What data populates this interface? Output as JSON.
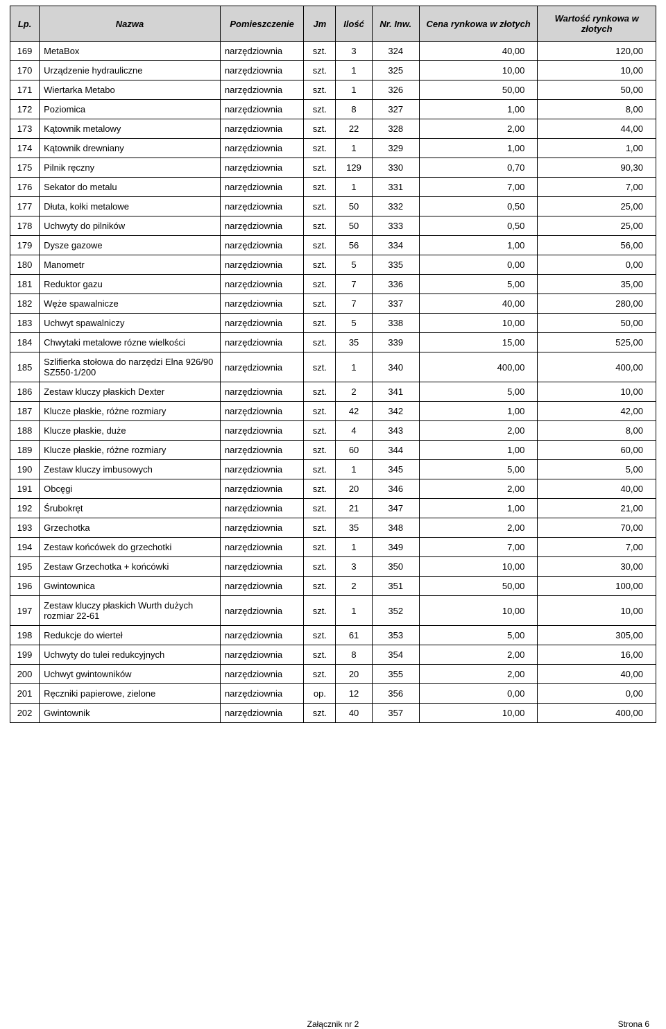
{
  "table": {
    "headers": {
      "lp": "Lp.",
      "name": "Nazwa",
      "room": "Pomieszczenie",
      "jm": "Jm",
      "qty": "Ilość",
      "inv": "Nr. Inw.",
      "price": "Cena rynkowa  w złotych",
      "value": "Wartość rynkowa w złotych"
    },
    "rows": [
      {
        "lp": "169",
        "name": "MetaBox",
        "room": "narzędziownia",
        "jm": "szt.",
        "qty": "3",
        "inv": "324",
        "price": "40,00",
        "value": "120,00"
      },
      {
        "lp": "170",
        "name": "Urządzenie hydrauliczne",
        "room": "narzędziownia",
        "jm": "szt.",
        "qty": "1",
        "inv": "325",
        "price": "10,00",
        "value": "10,00"
      },
      {
        "lp": "171",
        "name": "Wiertarka Metabo",
        "room": "narzędziownia",
        "jm": "szt.",
        "qty": "1",
        "inv": "326",
        "price": "50,00",
        "value": "50,00"
      },
      {
        "lp": "172",
        "name": "Poziomica",
        "room": "narzędziownia",
        "jm": "szt.",
        "qty": "8",
        "inv": "327",
        "price": "1,00",
        "value": "8,00"
      },
      {
        "lp": "173",
        "name": "Kątownik metalowy",
        "room": "narzędziownia",
        "jm": "szt.",
        "qty": "22",
        "inv": "328",
        "price": "2,00",
        "value": "44,00"
      },
      {
        "lp": "174",
        "name": "Kątownik drewniany",
        "room": "narzędziownia",
        "jm": "szt.",
        "qty": "1",
        "inv": "329",
        "price": "1,00",
        "value": "1,00"
      },
      {
        "lp": "175",
        "name": "Pilnik ręczny",
        "room": "narzędziownia",
        "jm": "szt.",
        "qty": "129",
        "inv": "330",
        "price": "0,70",
        "value": "90,30"
      },
      {
        "lp": "176",
        "name": "Sekator do metalu",
        "room": "narzędziownia",
        "jm": "szt.",
        "qty": "1",
        "inv": "331",
        "price": "7,00",
        "value": "7,00"
      },
      {
        "lp": "177",
        "name": "Dłuta, kołki metalowe",
        "room": "narzędziownia",
        "jm": "szt.",
        "qty": "50",
        "inv": "332",
        "price": "0,50",
        "value": "25,00"
      },
      {
        "lp": "178",
        "name": "Uchwyty do pilników",
        "room": "narzędziownia",
        "jm": "szt.",
        "qty": "50",
        "inv": "333",
        "price": "0,50",
        "value": "25,00"
      },
      {
        "lp": "179",
        "name": "Dysze gazowe",
        "room": "narzędziownia",
        "jm": "szt.",
        "qty": "56",
        "inv": "334",
        "price": "1,00",
        "value": "56,00"
      },
      {
        "lp": "180",
        "name": "Manometr",
        "room": "narzędziownia",
        "jm": "szt.",
        "qty": "5",
        "inv": "335",
        "price": "0,00",
        "value": "0,00"
      },
      {
        "lp": "181",
        "name": "Reduktor gazu",
        "room": "narzędziownia",
        "jm": "szt.",
        "qty": "7",
        "inv": "336",
        "price": "5,00",
        "value": "35,00"
      },
      {
        "lp": "182",
        "name": "Węże spawalnicze",
        "room": "narzędziownia",
        "jm": "szt.",
        "qty": "7",
        "inv": "337",
        "price": "40,00",
        "value": "280,00"
      },
      {
        "lp": "183",
        "name": "Uchwyt spawalniczy",
        "room": "narzędziownia",
        "jm": "szt.",
        "qty": "5",
        "inv": "338",
        "price": "10,00",
        "value": "50,00"
      },
      {
        "lp": "184",
        "name": "Chwytaki metalowe rózne wielkości",
        "room": "narzędziownia",
        "jm": "szt.",
        "qty": "35",
        "inv": "339",
        "price": "15,00",
        "value": "525,00"
      },
      {
        "lp": "185",
        "name": "Szlifierka stołowa do narzędzi Elna 926/90 SZ550-1/200",
        "room": "narzędziownia",
        "jm": "szt.",
        "qty": "1",
        "inv": "340",
        "price": "400,00",
        "value": "400,00"
      },
      {
        "lp": "186",
        "name": "Zestaw kluczy płaskich Dexter",
        "room": "narzędziownia",
        "jm": "szt.",
        "qty": "2",
        "inv": "341",
        "price": "5,00",
        "value": "10,00"
      },
      {
        "lp": "187",
        "name": "Klucze płaskie, różne rozmiary",
        "room": "narzędziownia",
        "jm": "szt.",
        "qty": "42",
        "inv": "342",
        "price": "1,00",
        "value": "42,00"
      },
      {
        "lp": "188",
        "name": "Klucze płaskie, duże",
        "room": "narzędziownia",
        "jm": "szt.",
        "qty": "4",
        "inv": "343",
        "price": "2,00",
        "value": "8,00"
      },
      {
        "lp": "189",
        "name": "Klucze płaskie, różne rozmiary",
        "room": "narzędziownia",
        "jm": "szt.",
        "qty": "60",
        "inv": "344",
        "price": "1,00",
        "value": "60,00"
      },
      {
        "lp": "190",
        "name": "Zestaw kluczy imbusowych",
        "room": "narzędziownia",
        "jm": "szt.",
        "qty": "1",
        "inv": "345",
        "price": "5,00",
        "value": "5,00"
      },
      {
        "lp": "191",
        "name": "Obcęgi",
        "room": "narzędziownia",
        "jm": "szt.",
        "qty": "20",
        "inv": "346",
        "price": "2,00",
        "value": "40,00"
      },
      {
        "lp": "192",
        "name": "Śrubokręt",
        "room": "narzędziownia",
        "jm": "szt.",
        "qty": "21",
        "inv": "347",
        "price": "1,00",
        "value": "21,00"
      },
      {
        "lp": "193",
        "name": "Grzechotka",
        "room": "narzędziownia",
        "jm": "szt.",
        "qty": "35",
        "inv": "348",
        "price": "2,00",
        "value": "70,00"
      },
      {
        "lp": "194",
        "name": "Zestaw końcówek do grzechotki",
        "room": "narzędziownia",
        "jm": "szt.",
        "qty": "1",
        "inv": "349",
        "price": "7,00",
        "value": "7,00"
      },
      {
        "lp": "195",
        "name": "Zestaw Grzechotka + końcówki",
        "room": "narzędziownia",
        "jm": "szt.",
        "qty": "3",
        "inv": "350",
        "price": "10,00",
        "value": "30,00"
      },
      {
        "lp": "196",
        "name": "Gwintownica",
        "room": "narzędziownia",
        "jm": "szt.",
        "qty": "2",
        "inv": "351",
        "price": "50,00",
        "value": "100,00"
      },
      {
        "lp": "197",
        "name": "Zestaw kluczy płaskich Wurth dużych rozmiar 22-61",
        "room": "narzędziownia",
        "jm": "szt.",
        "qty": "1",
        "inv": "352",
        "price": "10,00",
        "value": "10,00"
      },
      {
        "lp": "198",
        "name": "Redukcje do wierteł",
        "room": "narzędziownia",
        "jm": "szt.",
        "qty": "61",
        "inv": "353",
        "price": "5,00",
        "value": "305,00"
      },
      {
        "lp": "199",
        "name": "Uchwyty do tulei redukcyjnych",
        "room": "narzędziownia",
        "jm": "szt.",
        "qty": "8",
        "inv": "354",
        "price": "2,00",
        "value": "16,00"
      },
      {
        "lp": "200",
        "name": "Uchwyt gwintowników",
        "room": "narzędziownia",
        "jm": "szt.",
        "qty": "20",
        "inv": "355",
        "price": "2,00",
        "value": "40,00"
      },
      {
        "lp": "201",
        "name": "Ręczniki papierowe, zielone",
        "room": "narzędziownia",
        "jm": "op.",
        "qty": "12",
        "inv": "356",
        "price": "0,00",
        "value": "0,00"
      },
      {
        "lp": "202",
        "name": "Gwintownik",
        "room": "narzędziownia",
        "jm": "szt.",
        "qty": "40",
        "inv": "357",
        "price": "10,00",
        "value": "400,00"
      }
    ]
  },
  "footer": {
    "center": "Załącznik nr 2",
    "right": "Strona 6"
  }
}
